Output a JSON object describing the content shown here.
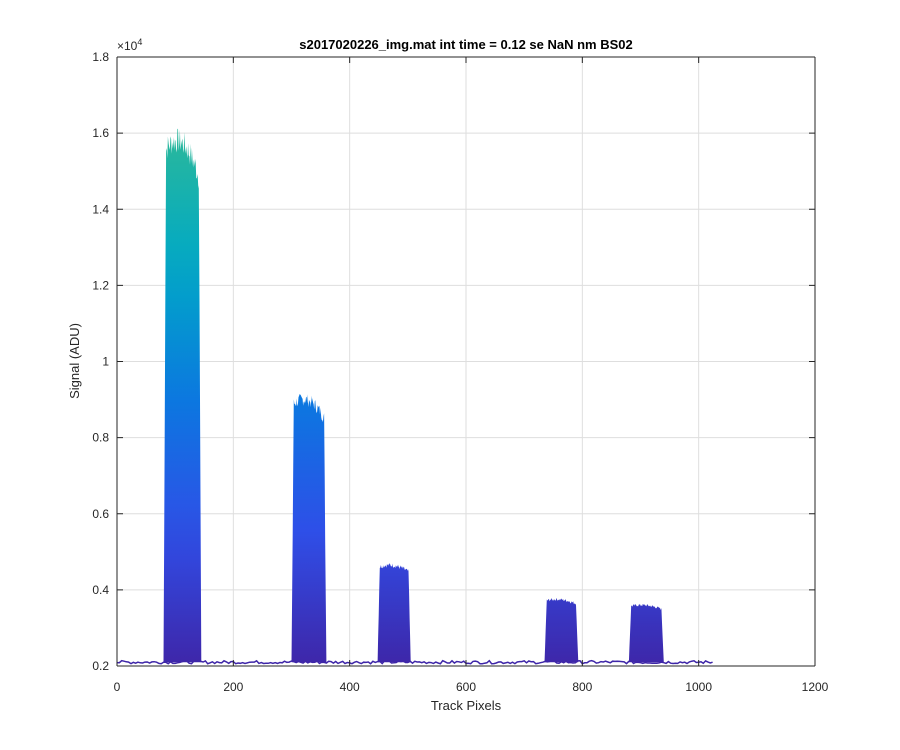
{
  "chart_data": {
    "type": "area",
    "title": "s2017020226_img.mat int time = 0.12 se  NaN nm BS02",
    "xlabel": "Track Pixels",
    "ylabel": "Signal (ADU)",
    "xlim": [
      0,
      1200
    ],
    "ylim": [
      2000,
      18000
    ],
    "y_exponent_label": "×10",
    "y_exponent_power": "4",
    "x_ticks": [
      0,
      200,
      400,
      600,
      800,
      1000,
      1200
    ],
    "x_tick_labels": [
      "0",
      "200",
      "400",
      "600",
      "800",
      "1000",
      "1200"
    ],
    "y_ticks": [
      2000,
      4000,
      6000,
      8000,
      10000,
      12000,
      14000,
      16000,
      18000
    ],
    "y_tick_labels": [
      "0.2",
      "0.4",
      "0.6",
      "0.8",
      "1",
      "1.2",
      "1.4",
      "1.6",
      "1.8"
    ],
    "grid": true,
    "colormap": [
      "#3e26a8",
      "#2f4ee8",
      "#0b78e0",
      "#00a8c6",
      "#2ab89a",
      "#7cbd5e",
      "#c4b736",
      "#fcc235",
      "#f9fb0e"
    ],
    "baseline": 2100,
    "data_extent": [
      0,
      1024
    ],
    "peaks": [
      {
        "x_start": 80,
        "x_end": 145,
        "peak": 15800
      },
      {
        "x_start": 300,
        "x_end": 360,
        "peak": 9000
      },
      {
        "x_start": 448,
        "x_end": 505,
        "peak": 4650
      },
      {
        "x_start": 735,
        "x_end": 793,
        "peak": 3750
      },
      {
        "x_start": 880,
        "x_end": 940,
        "peak": 3600
      }
    ]
  }
}
